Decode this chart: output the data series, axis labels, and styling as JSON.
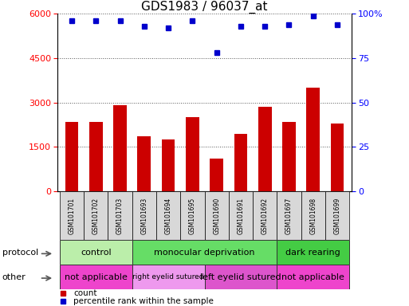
{
  "title": "GDS1983 / 96037_at",
  "samples": [
    "GSM101701",
    "GSM101702",
    "GSM101703",
    "GSM101693",
    "GSM101694",
    "GSM101695",
    "GSM101690",
    "GSM101691",
    "GSM101692",
    "GSM101697",
    "GSM101698",
    "GSM101699"
  ],
  "counts": [
    2350,
    2350,
    2900,
    1850,
    1750,
    2500,
    1100,
    1950,
    2850,
    2350,
    3500,
    2300
  ],
  "percentile_ranks": [
    96,
    96,
    96,
    93,
    92,
    96,
    78,
    93,
    93,
    94,
    99,
    94
  ],
  "ylim_left": [
    0,
    6000
  ],
  "ylim_right": [
    0,
    100
  ],
  "yticks_left": [
    0,
    1500,
    3000,
    4500,
    6000
  ],
  "yticks_right": [
    0,
    25,
    50,
    75,
    100
  ],
  "bar_color": "#cc0000",
  "dot_color": "#0000cc",
  "protocol_groups": [
    {
      "label": "control",
      "start": 0,
      "end": 3,
      "color": "#bbeeaa"
    },
    {
      "label": "monocular deprivation",
      "start": 3,
      "end": 9,
      "color": "#66dd66"
    },
    {
      "label": "dark rearing",
      "start": 9,
      "end": 12,
      "color": "#44cc44"
    }
  ],
  "other_groups": [
    {
      "label": "not applicable",
      "start": 0,
      "end": 3,
      "color": "#ee44cc"
    },
    {
      "label": "right eyelid sutured",
      "start": 3,
      "end": 6,
      "color": "#ee99ee"
    },
    {
      "label": "left eyelid sutured",
      "start": 6,
      "end": 9,
      "color": "#dd55cc"
    },
    {
      "label": "not applicable",
      "start": 9,
      "end": 12,
      "color": "#ee44cc"
    }
  ],
  "legend_items": [
    {
      "label": "count",
      "color": "#cc0000"
    },
    {
      "label": "percentile rank within the sample",
      "color": "#0000cc"
    }
  ],
  "bg_color": "#ffffff",
  "grid_color": "#555555",
  "protocol_label": "protocol",
  "other_label": "other",
  "label_fontsize": 8,
  "tick_fontsize": 8,
  "title_fontsize": 11
}
